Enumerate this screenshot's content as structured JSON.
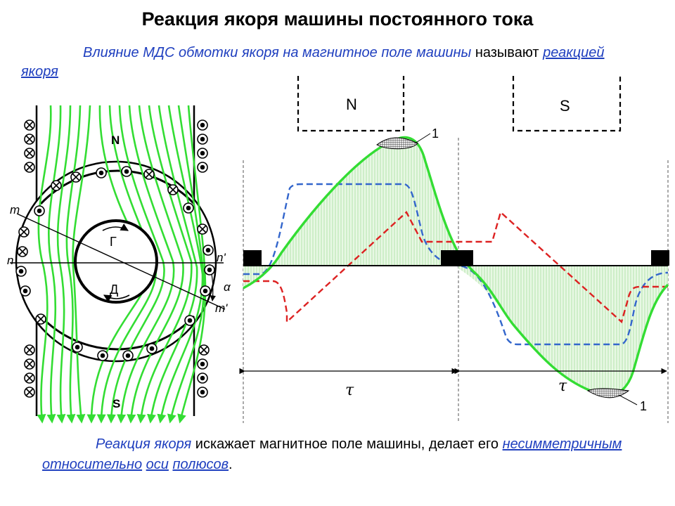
{
  "title": "Реакция якоря машины постоянного тока",
  "intro": {
    "part1": "Влияние МДС обмотки якоря на магнитное поле машины",
    "part2": " называют ",
    "link": "реакцией якоря"
  },
  "footer": {
    "part1": "Реакция якоря",
    "part2": " искажает магнитное поле машины, делает его ",
    "w1": "несимметричным",
    "w2": "относительно",
    "w3": "оси",
    "w4": "полюсов",
    "end": "."
  },
  "machine": {
    "pole_n": "N",
    "pole_s": "S",
    "label_m": "m",
    "label_n": "n",
    "label_n_prime": "n'",
    "label_m_prime": "m'",
    "label_alpha": "α",
    "label_g": "Г",
    "label_d": "Д"
  },
  "graph": {
    "pole_n": "N",
    "pole_s": "S",
    "tau_left": "τ",
    "tau_right": "τ",
    "marker_top": "1",
    "marker_bottom": "1"
  },
  "colors": {
    "field_lines": "#33dd33",
    "armature_mmf": "#dd2222",
    "pole_field": "#3366cc",
    "resultant": "#33dd33",
    "text_blue": "#1f3fbf"
  }
}
